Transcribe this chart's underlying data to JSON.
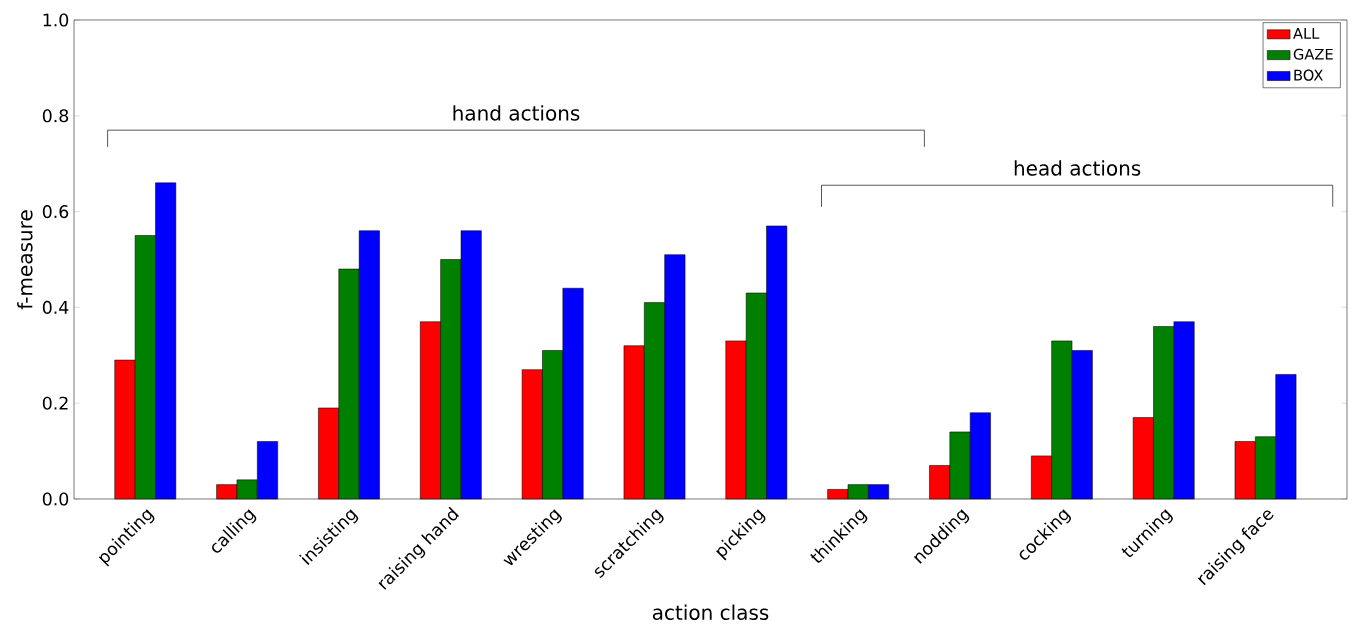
{
  "chart_data": {
    "type": "bar",
    "xlabel": "action class",
    "ylabel": "f-measure",
    "categories": [
      "pointing",
      "calling",
      "insisting",
      "raising hand",
      "wresting",
      "scratching",
      "picking",
      "thinking",
      "nodding",
      "cocking",
      "turning",
      "raising face"
    ],
    "series": [
      {
        "name": "ALL",
        "color": "#ff0000",
        "values": [
          0.29,
          0.03,
          0.19,
          0.37,
          0.27,
          0.32,
          0.33,
          0.02,
          0.07,
          0.09,
          0.17,
          0.12
        ]
      },
      {
        "name": "GAZE",
        "color": "#008000",
        "values": [
          0.55,
          0.04,
          0.48,
          0.5,
          0.31,
          0.41,
          0.43,
          0.03,
          0.14,
          0.33,
          0.36,
          0.13
        ]
      },
      {
        "name": "BOX",
        "color": "#0000ff",
        "values": [
          0.66,
          0.12,
          0.56,
          0.56,
          0.44,
          0.51,
          0.57,
          0.03,
          0.18,
          0.31,
          0.37,
          0.26
        ]
      }
    ],
    "ylim": [
      0,
      1.0
    ],
    "yticks": [
      {
        "value": 0,
        "label": "0.0"
      },
      0.2,
      0.4,
      0.6,
      0.8,
      {
        "value": 1,
        "label": "1.0"
      }
    ],
    "annotations": [
      "hand actions",
      "head actions"
    ],
    "legend": "top right",
    "grid": false
  }
}
